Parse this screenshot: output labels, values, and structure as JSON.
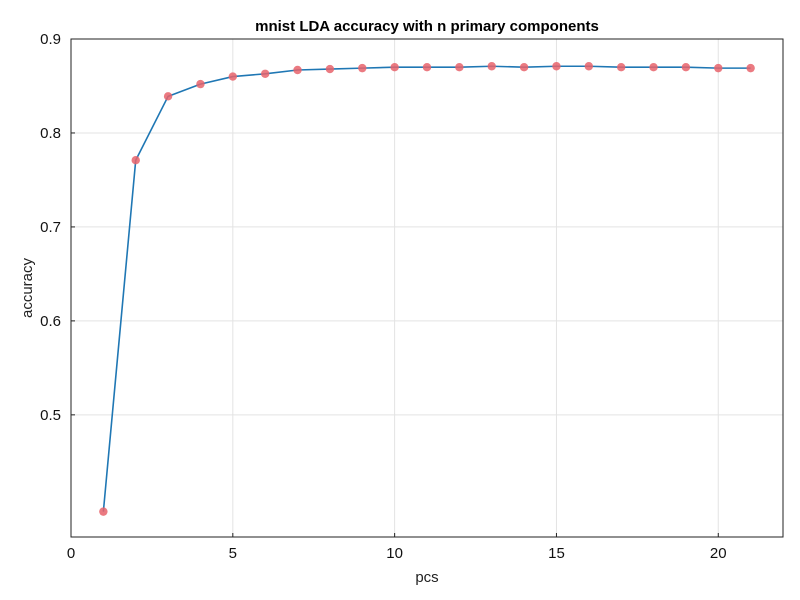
{
  "chart_data": {
    "type": "line",
    "title": "mnist LDA accuracy with n primary components",
    "xlabel": "pcs",
    "ylabel": "accuracy",
    "xlim": [
      0,
      22
    ],
    "ylim": [
      0.37,
      0.9
    ],
    "xticks": [
      0,
      5,
      10,
      15,
      20
    ],
    "yticks": [
      0.5,
      0.6,
      0.7,
      0.8,
      0.9
    ],
    "grid": true,
    "series": [
      {
        "x": [
          1,
          2,
          3,
          4,
          5,
          6,
          7,
          8,
          9,
          10,
          11,
          12,
          13,
          14,
          15,
          16,
          17,
          18,
          19,
          20,
          21
        ],
        "values": [
          0.397,
          0.771,
          0.839,
          0.852,
          0.86,
          0.863,
          0.867,
          0.868,
          0.869,
          0.87,
          0.87,
          0.87,
          0.871,
          0.87,
          0.871,
          0.871,
          0.87,
          0.87,
          0.87,
          0.869,
          0.869
        ]
      }
    ],
    "line_color": "#1f77b4",
    "marker_color": "#e8636b"
  }
}
